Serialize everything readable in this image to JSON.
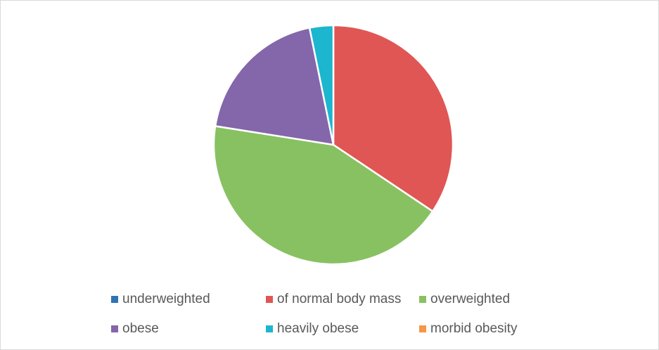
{
  "chart_data": {
    "type": "pie",
    "categories": [
      "underweighted",
      "of normal body mass",
      "overweighted",
      "obese",
      "heavily obese",
      "morbid obesity"
    ],
    "values": [
      0,
      34.4,
      43.1,
      19.3,
      3.2,
      0
    ],
    "colors": [
      "#2e75b6",
      "#e05654",
      "#88c161",
      "#8466ab",
      "#1cb6cf",
      "#f79646"
    ],
    "legend": "bottom"
  }
}
